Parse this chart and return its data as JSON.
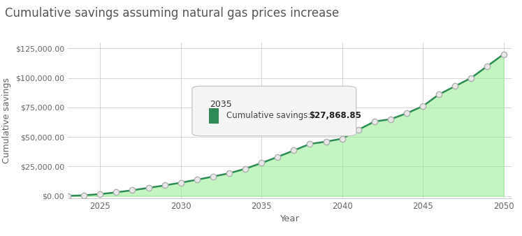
{
  "title": "Cumulative savings assuming natural gas prices increase",
  "xlabel": "Year",
  "ylabel": "Cumulative savings",
  "years": [
    2023,
    2024,
    2025,
    2026,
    2027,
    2028,
    2029,
    2030,
    2031,
    2032,
    2033,
    2034,
    2035,
    2036,
    2037,
    2038,
    2039,
    2040,
    2041,
    2042,
    2043,
    2044,
    2045,
    2046,
    2047,
    2048,
    2049,
    2050
  ],
  "values": [
    0,
    500,
    1500,
    3000,
    4800,
    6800,
    8900,
    11200,
    13700,
    16400,
    19200,
    23000,
    27869,
    33000,
    38500,
    44000,
    46000,
    48500,
    56000,
    63000,
    65000,
    70000,
    76000,
    86000,
    93000,
    100000,
    110000,
    120000
  ],
  "fill_color": "#90EE90",
  "fill_alpha": 0.55,
  "line_color": "#2E8B57",
  "line_width": 1.8,
  "marker_color": "#e8e8e8",
  "marker_edge_color": "#b0b0b0",
  "marker_size": 6,
  "bg_color": "#ffffff",
  "grid_color": "#cccccc",
  "title_color": "#555555",
  "axis_label_color": "#666666",
  "tick_color": "#666666",
  "xlim": [
    2023.0,
    2050.5
  ],
  "ylim": [
    -2000,
    130000
  ],
  "yticks": [
    0,
    25000,
    50000,
    75000,
    100000,
    125000
  ],
  "ytick_labels": [
    "$0.00",
    "$25,000.00",
    "$50,000.00",
    "$75,000.00",
    "$100,000.00",
    "$125,000.00"
  ],
  "xticks": [
    2025,
    2030,
    2035,
    2040,
    2045,
    2050
  ],
  "tooltip_year": "2035",
  "tooltip_value": "$27,868.85",
  "tooltip_x": 2035,
  "tooltip_y": 27869
}
